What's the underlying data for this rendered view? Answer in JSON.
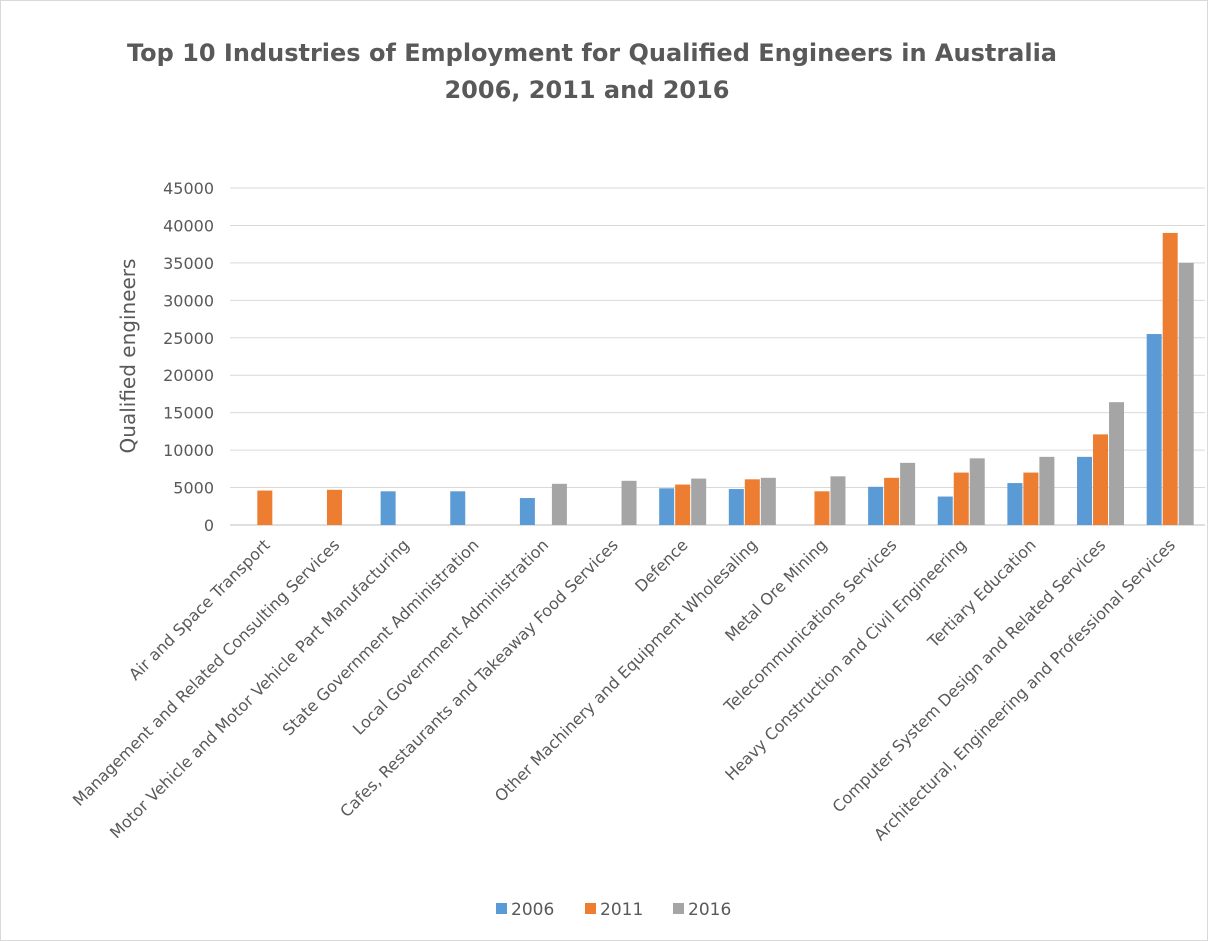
{
  "chart_data": {
    "type": "bar",
    "title": [
      "Top 10 Industries of Employment for Qualified Engineers in Australia",
      "2006, 2011 and 2016"
    ],
    "xlabel": "",
    "ylabel": "Qualified engineers",
    "ylim": [
      0,
      45000
    ],
    "yticks": [
      "0",
      "5000",
      "10000",
      "15000",
      "20000",
      "25000",
      "30000",
      "35000",
      "40000",
      "45000"
    ],
    "grid": true,
    "legend_position": "bottom",
    "categories": [
      "Air and Space Transport",
      "Management and Related Consulting Services",
      "Motor Vehicle and Motor Vehicle Part Manufacturing",
      "State Government Administration",
      "Local Government Administration",
      "Cafes, Restaurants and Takeaway Food Services",
      "Defence",
      "Other Machinery and Equipment Wholesaling",
      "Metal Ore Mining",
      "Telecommunications Services",
      "Heavy Construction and Civil Engineering",
      "Tertiary Education",
      "Computer System Design and Related Services",
      "Architectural, Engineering and Professional Services"
    ],
    "series": [
      {
        "name": "2006",
        "color": "#5b9bd5",
        "values": [
          null,
          null,
          4500,
          4500,
          3600,
          null,
          4900,
          4800,
          null,
          5100,
          3800,
          5600,
          9100,
          25500
        ]
      },
      {
        "name": "2011",
        "color": "#ed7d31",
        "values": [
          4600,
          4700,
          null,
          null,
          null,
          null,
          5400,
          6100,
          4500,
          6300,
          7000,
          7000,
          12100,
          39000
        ]
      },
      {
        "name": "2016",
        "color": "#a5a5a5",
        "values": [
          null,
          null,
          null,
          null,
          5500,
          5900,
          6200,
          6300,
          6500,
          8300,
          8900,
          9100,
          16400,
          35000
        ]
      }
    ]
  }
}
